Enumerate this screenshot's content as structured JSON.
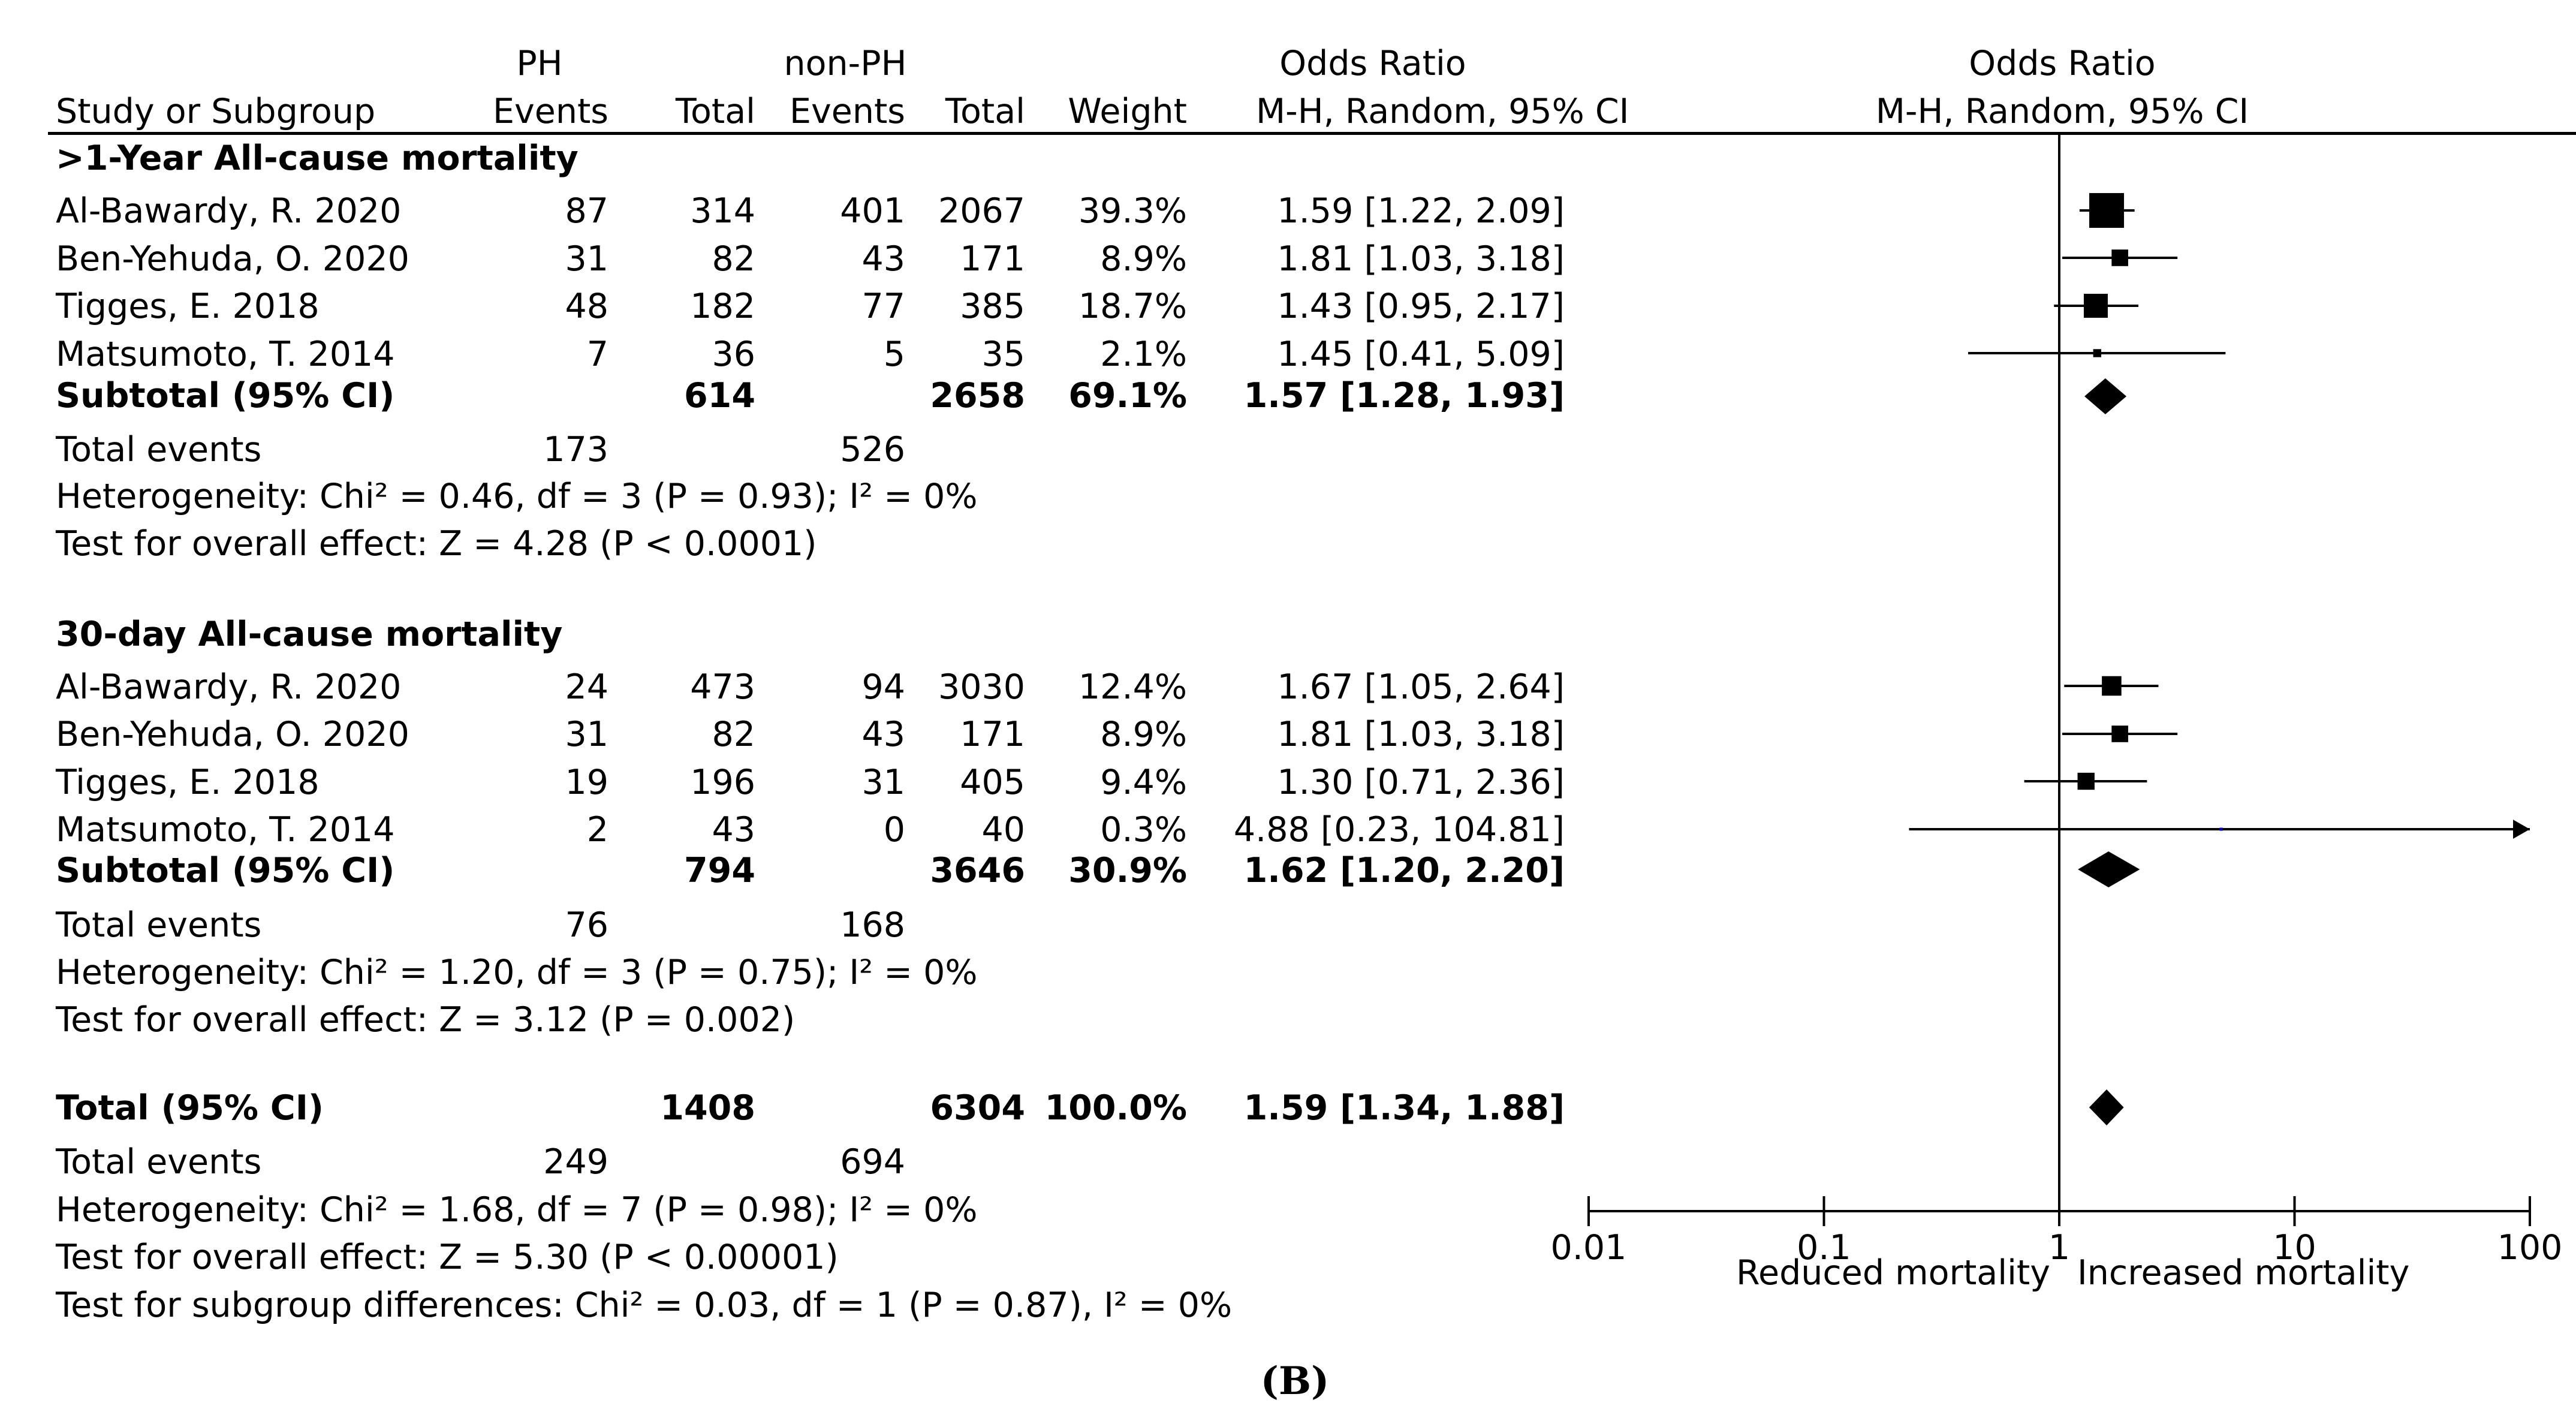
{
  "headers": {
    "study": "Study or Subgroup",
    "ph_group": "PH",
    "ph_events": "Events",
    "ph_total": "Total",
    "nonph_group": "non-PH",
    "nonph_events": "Events",
    "nonph_total": "Total",
    "weight": "Weight",
    "or_title": "Odds Ratio",
    "or_method": "M-H, Random, 95% CI",
    "plot_title": "Odds Ratio",
    "plot_method": "M-H, Random, 95% CI"
  },
  "subgroups": [
    {
      "title": ">1-Year All-cause mortality",
      "studies": [
        {
          "name": "Al-Bawardy, R. 2020",
          "ph_events": "87",
          "ph_total": "314",
          "nonph_events": "401",
          "nonph_total": "2067",
          "weight": "39.3%",
          "ci_text": "1.59 [1.22, 2.09]"
        },
        {
          "name": "Ben-Yehuda, O. 2020",
          "ph_events": "31",
          "ph_total": "82",
          "nonph_events": "43",
          "nonph_total": "171",
          "weight": "8.9%",
          "ci_text": "1.81 [1.03, 3.18]"
        },
        {
          "name": "Tigges, E. 2018",
          "ph_events": "48",
          "ph_total": "182",
          "nonph_events": "77",
          "nonph_total": "385",
          "weight": "18.7%",
          "ci_text": "1.43 [0.95, 2.17]"
        },
        {
          "name": "Matsumoto, T. 2014",
          "ph_events": "7",
          "ph_total": "36",
          "nonph_events": "5",
          "nonph_total": "35",
          "weight": "2.1%",
          "ci_text": "1.45 [0.41, 5.09]"
        }
      ],
      "subtotal": {
        "label": "Subtotal (95% CI)",
        "ph_total": "614",
        "nonph_total": "2658",
        "weight": "69.1%",
        "ci_text": "1.57 [1.28, 1.93]"
      },
      "total_events": {
        "label": "Total events",
        "ph": "173",
        "nonph": "526"
      },
      "heterogeneity": "Heterogeneity: Chi² = 0.46, df = 3 (P = 0.93); I² = 0%",
      "overall_effect": "Test for overall effect: Z = 4.28 (P < 0.0001)"
    },
    {
      "title": "30-day All-cause mortality",
      "studies": [
        {
          "name": "Al-Bawardy, R. 2020",
          "ph_events": "24",
          "ph_total": "473",
          "nonph_events": "94",
          "nonph_total": "3030",
          "weight": "12.4%",
          "ci_text": "1.67 [1.05, 2.64]"
        },
        {
          "name": "Ben-Yehuda, O. 2020",
          "ph_events": "31",
          "ph_total": "82",
          "nonph_events": "43",
          "nonph_total": "171",
          "weight": "8.9%",
          "ci_text": "1.81 [1.03, 3.18]"
        },
        {
          "name": "Tigges, E. 2018",
          "ph_events": "19",
          "ph_total": "196",
          "nonph_events": "31",
          "nonph_total": "405",
          "weight": "9.4%",
          "ci_text": "1.30 [0.71, 2.36]"
        },
        {
          "name": "Matsumoto, T. 2014",
          "ph_events": "2",
          "ph_total": "43",
          "nonph_events": "0",
          "nonph_total": "40",
          "weight": "0.3%",
          "ci_text": "4.88 [0.23, 104.81]"
        }
      ],
      "subtotal": {
        "label": "Subtotal (95% CI)",
        "ph_total": "794",
        "nonph_total": "3646",
        "weight": "30.9%",
        "ci_text": "1.62 [1.20, 2.20]"
      },
      "total_events": {
        "label": "Total events",
        "ph": "76",
        "nonph": "168"
      },
      "heterogeneity": "Heterogeneity: Chi² = 1.20, df = 3 (P = 0.75); I² = 0%",
      "overall_effect": "Test for overall effect: Z = 3.12 (P = 0.002)"
    }
  ],
  "overall": {
    "label": "Total (95% CI)",
    "ph_total": "1408",
    "nonph_total": "6304",
    "weight": "100.0%",
    "ci_text": "1.59 [1.34, 1.88]",
    "total_events": {
      "label": "Total events",
      "ph": "249",
      "nonph": "694"
    },
    "heterogeneity": "Heterogeneity: Chi² = 1.68, df = 7 (P = 0.98); I² = 0%",
    "overall_effect": "Test for overall effect: Z = 5.30 (P < 0.00001)",
    "subgroup_diff": "Test for subgroup differences: Chi² = 0.03, df = 1 (P = 0.87), I² = 0%"
  },
  "axis": {
    "left_label": "Reduced mortality",
    "right_label": "Increased mortality"
  },
  "caption": "(B)",
  "colors": {
    "mark": "#000000",
    "highlight_point": "#0000cc"
  },
  "chart_data": {
    "type": "forest",
    "title": "Odds Ratio",
    "subtitle": "M-H, Random, 95% CI",
    "scale": "log",
    "xlim": [
      0.01,
      100
    ],
    "ticks": [
      0.01,
      0.1,
      1,
      10,
      100
    ],
    "tick_labels": [
      "0.01",
      "0.1",
      "1",
      "10",
      "100"
    ],
    "reference_line": 1,
    "xlabel_left": "Reduced mortality",
    "xlabel_right": "Increased mortality",
    "studies": [
      {
        "subgroup": ">1-Year All-cause mortality",
        "name": "Al-Bawardy, R. 2020",
        "or": 1.59,
        "lo": 1.22,
        "hi": 2.09,
        "weight": 39.3
      },
      {
        "subgroup": ">1-Year All-cause mortality",
        "name": "Ben-Yehuda, O. 2020",
        "or": 1.81,
        "lo": 1.03,
        "hi": 3.18,
        "weight": 8.9
      },
      {
        "subgroup": ">1-Year All-cause mortality",
        "name": "Tigges, E. 2018",
        "or": 1.43,
        "lo": 0.95,
        "hi": 2.17,
        "weight": 18.7
      },
      {
        "subgroup": ">1-Year All-cause mortality",
        "name": "Matsumoto, T. 2014",
        "or": 1.45,
        "lo": 0.41,
        "hi": 5.09,
        "weight": 2.1
      },
      {
        "subgroup": "30-day All-cause mortality",
        "name": "Al-Bawardy, R. 2020",
        "or": 1.67,
        "lo": 1.05,
        "hi": 2.64,
        "weight": 12.4
      },
      {
        "subgroup": "30-day All-cause mortality",
        "name": "Ben-Yehuda, O. 2020",
        "or": 1.81,
        "lo": 1.03,
        "hi": 3.18,
        "weight": 8.9
      },
      {
        "subgroup": "30-day All-cause mortality",
        "name": "Tigges, E. 2018",
        "or": 1.3,
        "lo": 0.71,
        "hi": 2.36,
        "weight": 9.4
      },
      {
        "subgroup": "30-day All-cause mortality",
        "name": "Matsumoto, T. 2014",
        "or": 4.88,
        "lo": 0.23,
        "hi": 104.81,
        "weight": 0.3
      }
    ],
    "summaries": [
      {
        "name": ">1-Year All-cause mortality subtotal",
        "or": 1.57,
        "lo": 1.28,
        "hi": 1.93
      },
      {
        "name": "30-day All-cause mortality subtotal",
        "or": 1.62,
        "lo": 1.2,
        "hi": 2.2
      },
      {
        "name": "Total",
        "or": 1.59,
        "lo": 1.34,
        "hi": 1.88
      }
    ]
  }
}
